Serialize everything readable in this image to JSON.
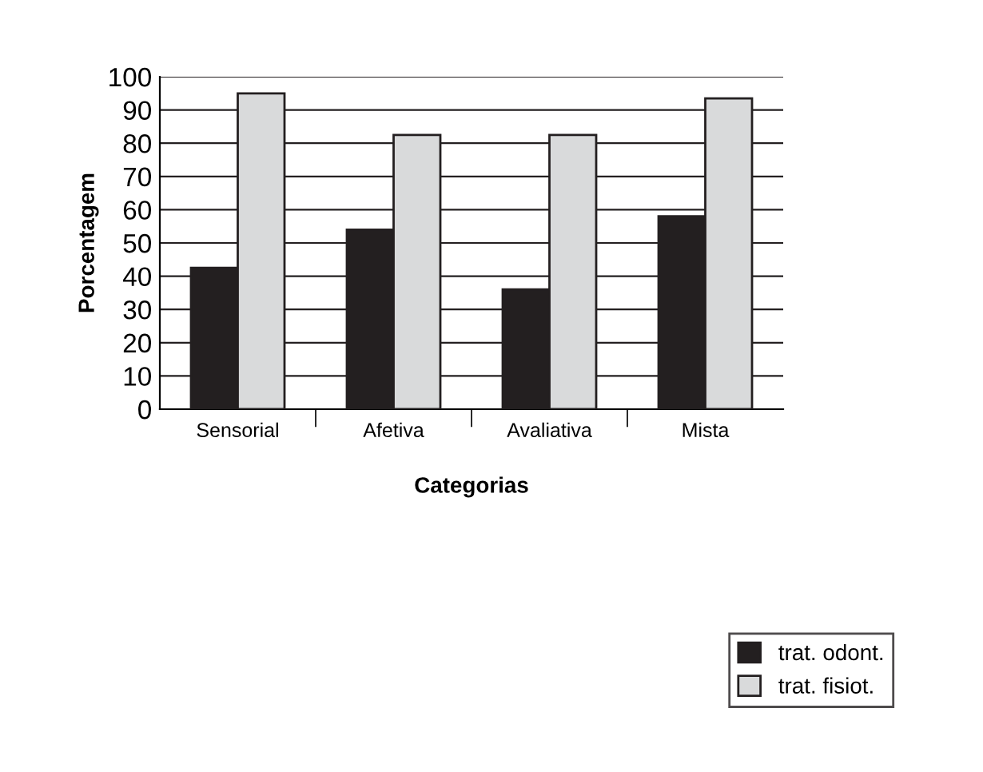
{
  "chart_data": {
    "type": "bar",
    "xlabel": "Categorias",
    "ylabel": "Porcentagem",
    "categories": [
      "Sensorial",
      "Afetiva",
      "Avaliativa",
      "Mista"
    ],
    "series": [
      {
        "name": "trat. odont.",
        "color": "#231f20",
        "values": [
          42.5,
          54,
          36,
          58
        ]
      },
      {
        "name": "trat. fisiot.",
        "color": "#d9dadb",
        "values": [
          95,
          82.5,
          82.5,
          93.5
        ]
      }
    ],
    "ylim": [
      0,
      100
    ],
    "yticks": [
      0,
      10,
      20,
      30,
      40,
      50,
      60,
      70,
      80,
      90,
      100
    ],
    "grid": "y",
    "legend": "bottom right"
  }
}
